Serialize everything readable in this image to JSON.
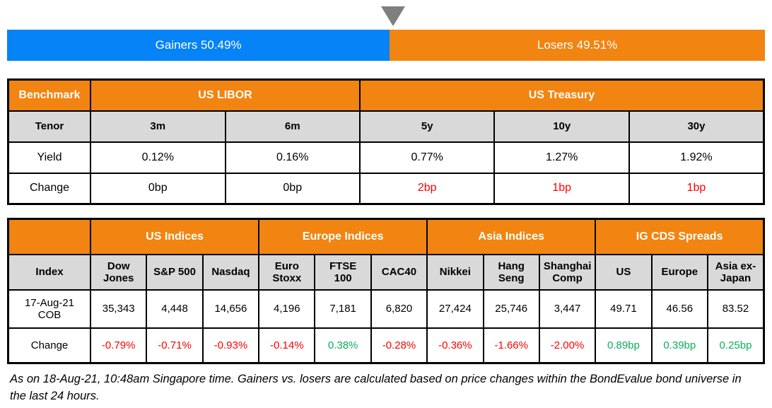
{
  "sentiment_bar": {
    "gainers_label": "Gainers 50.49%",
    "losers_label": "Losers 49.51%",
    "gainers_pct": 50.49,
    "losers_pct": 49.51,
    "gainers_color": "#0583f7",
    "losers_color": "#f28411",
    "pointer_color": "#7f7f7f"
  },
  "benchmark_table": {
    "corner_label": "Benchmark",
    "groups": [
      "US LIBOR",
      "US Treasury"
    ],
    "tenor_label": "Tenor",
    "tenors": [
      "3m",
      "6m",
      "5y",
      "10y",
      "30y"
    ],
    "yield_label": "Yield",
    "yields": [
      "0.12%",
      "0.16%",
      "0.77%",
      "1.27%",
      "1.92%"
    ],
    "change_label": "Change",
    "changes": [
      {
        "text": "0bp",
        "tone": "neutral"
      },
      {
        "text": "0bp",
        "tone": "neutral"
      },
      {
        "text": "2bp",
        "tone": "neg"
      },
      {
        "text": "1bp",
        "tone": "neg"
      },
      {
        "text": "1bp",
        "tone": "neg"
      }
    ]
  },
  "indices_table": {
    "groups": [
      "US Indices",
      "Europe Indices",
      "Asia Indices",
      "IG CDS Spreads"
    ],
    "index_label": "Index",
    "columns": [
      "Dow Jones",
      "S&P 500",
      "Nasdaq",
      "Euro Stoxx",
      "FTSE 100",
      "CAC40",
      "Nikkei",
      "Hang Seng",
      "Shanghai Comp",
      "US",
      "Europe",
      "Asia ex-Japan"
    ],
    "date_row_label": "17-Aug-21 COB",
    "values": [
      "35,343",
      "4,448",
      "14,656",
      "4,196",
      "7,181",
      "6,820",
      "27,424",
      "25,746",
      "3,447",
      "49.71",
      "46.56",
      "83.52"
    ],
    "change_label": "Change",
    "changes": [
      {
        "text": "-0.79%",
        "tone": "neg"
      },
      {
        "text": "-0.71%",
        "tone": "neg"
      },
      {
        "text": "-0.93%",
        "tone": "neg"
      },
      {
        "text": "-0.14%",
        "tone": "neg"
      },
      {
        "text": "0.38%",
        "tone": "pos"
      },
      {
        "text": "-0.28%",
        "tone": "neg"
      },
      {
        "text": "-0.36%",
        "tone": "neg"
      },
      {
        "text": "-1.66%",
        "tone": "neg"
      },
      {
        "text": "-2.00%",
        "tone": "neg"
      },
      {
        "text": "0.89bp",
        "tone": "pos"
      },
      {
        "text": "0.39bp",
        "tone": "pos"
      },
      {
        "text": "0.25bp",
        "tone": "pos"
      }
    ]
  },
  "footnote": "As on 18-Aug-21, 10:48am Singapore time. Gainers vs. losers are calculated based on price changes within the BondEvalue bond universe in the last 24 hours.",
  "chart_data": [
    {
      "type": "bar",
      "title": "Gainers vs Losers",
      "categories": [
        "Gainers",
        "Losers"
      ],
      "values": [
        50.49,
        49.51
      ],
      "orientation": "horizontal-stacked",
      "colors": [
        "#0583f7",
        "#f28411"
      ],
      "value_format": "percent"
    },
    {
      "type": "table",
      "title": "Benchmark",
      "column_groups": [
        {
          "label": "US LIBOR",
          "columns": [
            "3m",
            "6m"
          ]
        },
        {
          "label": "US Treasury",
          "columns": [
            "5y",
            "10y",
            "30y"
          ]
        }
      ],
      "columns": [
        "Tenor",
        "3m",
        "6m",
        "5y",
        "10y",
        "30y"
      ],
      "rows": [
        [
          "Yield",
          "0.12%",
          "0.16%",
          "0.77%",
          "1.27%",
          "1.92%"
        ],
        [
          "Change",
          "0bp",
          "0bp",
          "2bp",
          "1bp",
          "1bp"
        ]
      ]
    },
    {
      "type": "table",
      "title": "Indices and IG CDS Spreads",
      "column_groups": [
        {
          "label": "US Indices",
          "columns": [
            "Dow Jones",
            "S&P 500",
            "Nasdaq"
          ]
        },
        {
          "label": "Europe Indices",
          "columns": [
            "Euro Stoxx",
            "FTSE 100",
            "CAC40"
          ]
        },
        {
          "label": "Asia Indices",
          "columns": [
            "Nikkei",
            "Hang Seng",
            "Shanghai Comp"
          ]
        },
        {
          "label": "IG CDS Spreads",
          "columns": [
            "US",
            "Europe",
            "Asia ex-Japan"
          ]
        }
      ],
      "columns": [
        "Index",
        "Dow Jones",
        "S&P 500",
        "Nasdaq",
        "Euro Stoxx",
        "FTSE 100",
        "CAC40",
        "Nikkei",
        "Hang Seng",
        "Shanghai Comp",
        "US",
        "Europe",
        "Asia ex-Japan"
      ],
      "rows": [
        [
          "17-Aug-21 COB",
          35343,
          4448,
          14656,
          4196,
          7181,
          6820,
          27424,
          25746,
          3447,
          49.71,
          46.56,
          83.52
        ],
        [
          "Change",
          "-0.79%",
          "-0.71%",
          "-0.93%",
          "-0.14%",
          "0.38%",
          "-0.28%",
          "-0.36%",
          "-1.66%",
          "-2.00%",
          "0.89bp",
          "0.39bp",
          "0.25bp"
        ]
      ]
    }
  ]
}
